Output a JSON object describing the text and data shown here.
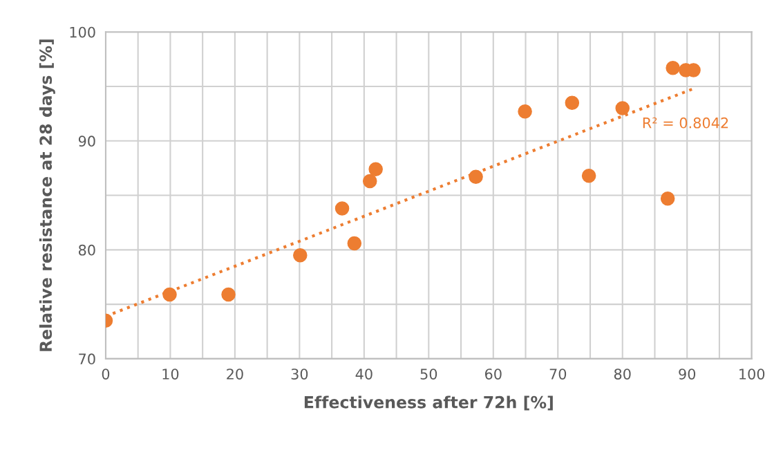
{
  "chart_data": {
    "type": "scatter",
    "xlabel": "Effectiveness after 72h [%]",
    "ylabel": "Relative resistance at 28 days [%]",
    "annotations": [
      "R² = 0.8042"
    ],
    "series": [
      {
        "color": "#ed7d31",
        "marker": "circle",
        "x": [
          0,
          9.9,
          19,
          30.1,
          36.6,
          38.5,
          40.9,
          41.8,
          57.3,
          64.9,
          72.2,
          74.8,
          80,
          87,
          87.8,
          89.8,
          91
        ],
        "values": [
          73.5,
          75.9,
          75.9,
          79.5,
          83.8,
          80.6,
          86.3,
          87.4,
          86.7,
          92.7,
          93.5,
          86.8,
          93,
          84.7,
          96.7,
          96.5,
          96.5
        ]
      },
      {
        "type": "line",
        "color": "#ed7d31",
        "line_style": "dotted",
        "x": [
          0,
          91
        ],
        "values": [
          73.9,
          94.8
        ]
      }
    ],
    "xlim": [
      0,
      100
    ],
    "ylim": [
      70,
      100
    ],
    "xticks": [
      0,
      {
        "value": 5,
        "label": null
      },
      10,
      {
        "value": 15,
        "label": null
      },
      20,
      {
        "value": 25,
        "label": null
      },
      30,
      {
        "value": 35,
        "label": null
      },
      40,
      {
        "value": 45,
        "label": null
      },
      50,
      {
        "value": 55,
        "label": null
      },
      60,
      {
        "value": 65,
        "label": null
      },
      70,
      {
        "value": 75,
        "label": null
      },
      80,
      {
        "value": 85,
        "label": null
      },
      90,
      {
        "value": 95,
        "label": null
      },
      100
    ],
    "yticks": [
      70,
      {
        "value": 75,
        "label": null
      },
      80,
      {
        "value": 85,
        "label": null
      },
      90,
      {
        "value": 95,
        "label": null
      },
      100
    ],
    "grid": true
  }
}
